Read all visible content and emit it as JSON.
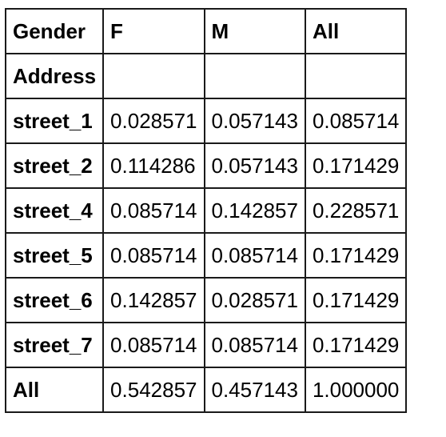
{
  "table": {
    "header": {
      "corner": "Gender",
      "columns": [
        "F",
        "M",
        "All"
      ]
    },
    "index_name": "Address",
    "rows": [
      {
        "label": "street_1",
        "values": [
          "0.028571",
          "0.057143",
          "0.085714"
        ]
      },
      {
        "label": "street_2",
        "values": [
          "0.114286",
          "0.057143",
          "0.171429"
        ]
      },
      {
        "label": "street_4",
        "values": [
          "0.085714",
          "0.142857",
          "0.228571"
        ]
      },
      {
        "label": "street_5",
        "values": [
          "0.085714",
          "0.085714",
          "0.171429"
        ]
      },
      {
        "label": "street_6",
        "values": [
          "0.142857",
          "0.028571",
          "0.171429"
        ]
      },
      {
        "label": "street_7",
        "values": [
          "0.085714",
          "0.085714",
          "0.171429"
        ]
      },
      {
        "label": "All",
        "values": [
          "0.542857",
          "0.457143",
          "1.000000"
        ]
      }
    ]
  },
  "colors": {
    "border": "#1a1a1a",
    "text": "#000000",
    "background": "#ffffff"
  }
}
